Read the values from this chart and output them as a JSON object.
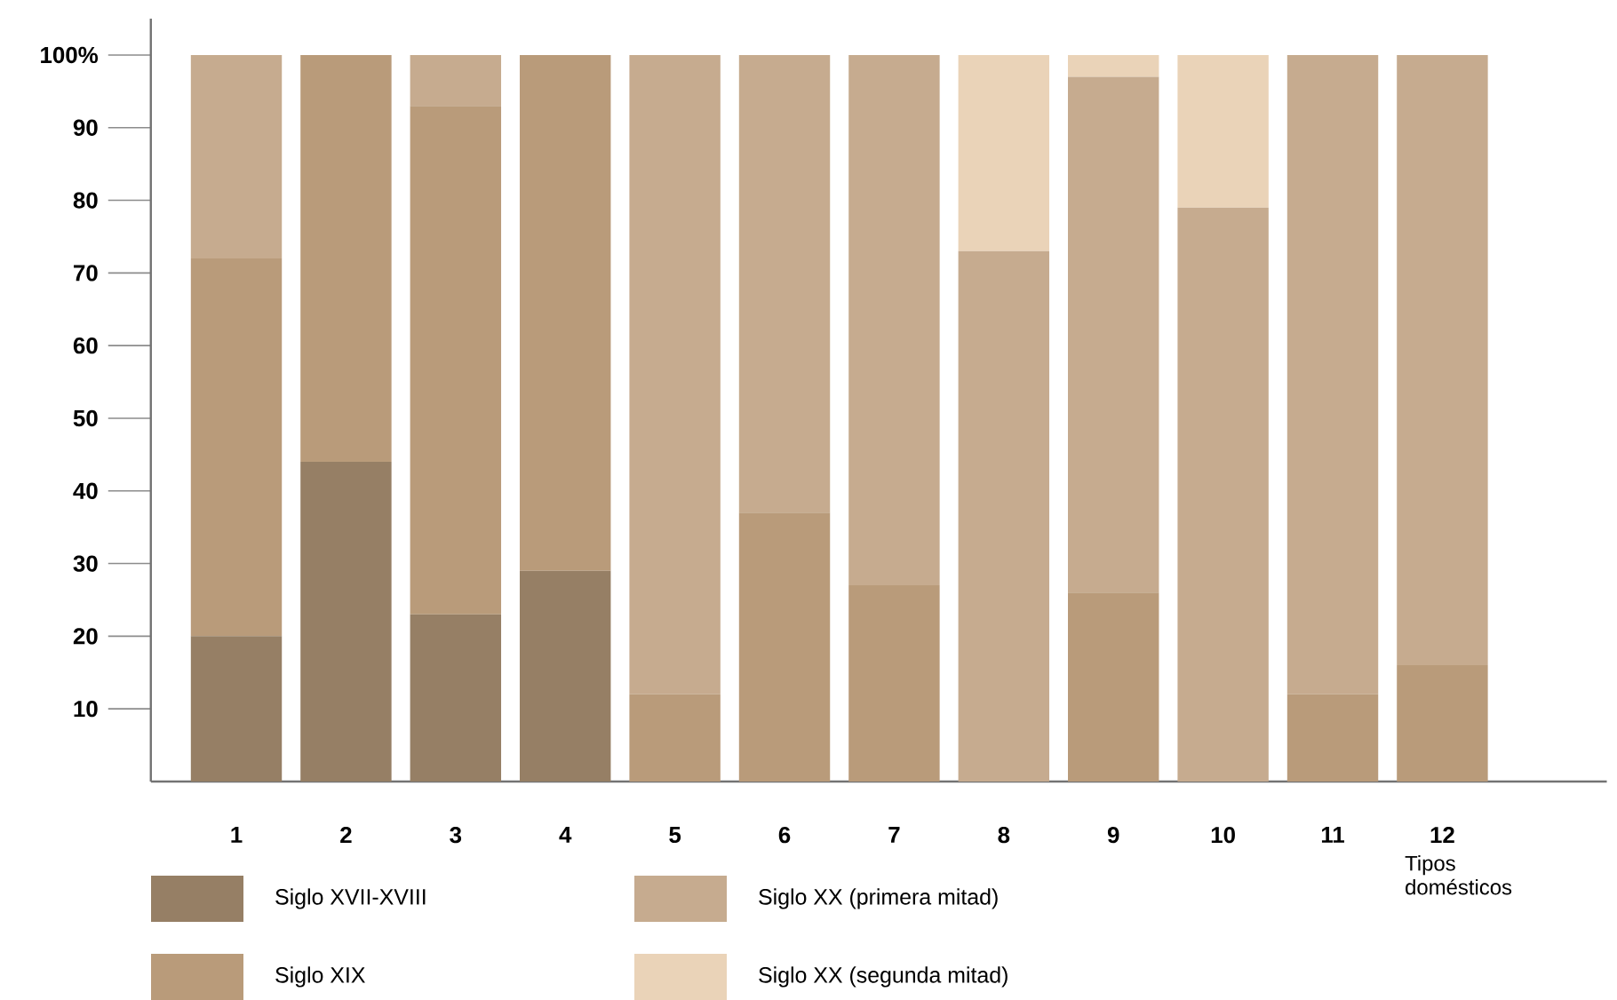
{
  "chart_data": {
    "type": "bar",
    "stacked": true,
    "xlabel": "Tipos domésticos",
    "categories": [
      "1",
      "2",
      "3",
      "4",
      "5",
      "6",
      "7",
      "8",
      "9",
      "10",
      "11",
      "12"
    ],
    "series": [
      {
        "name": "Siglo XVII-XVIII",
        "color": "#967f65",
        "values": [
          20,
          44,
          23,
          29,
          0,
          0,
          0,
          0,
          0,
          0,
          0,
          0
        ]
      },
      {
        "name": "Siglo XIX",
        "color": "#b99b7a",
        "values": [
          52,
          56,
          70,
          71,
          12,
          37,
          27,
          0,
          26,
          0,
          12,
          16
        ]
      },
      {
        "name": "Siglo XX (primera mitad)",
        "color": "#c6ab8f",
        "values": [
          28,
          0,
          7,
          0,
          88,
          63,
          73,
          73,
          71,
          79,
          88,
          84
        ]
      },
      {
        "name": "Siglo XX (segunda mitad)",
        "color": "#ead3b8",
        "values": [
          0,
          0,
          0,
          0,
          0,
          0,
          0,
          27,
          3,
          21,
          0,
          0
        ]
      }
    ],
    "ylim": [
      0,
      105
    ],
    "yticks": [
      10,
      20,
      30,
      40,
      50,
      60,
      70,
      80,
      90,
      {
        "value": 100,
        "label": "100%"
      }
    ],
    "legend": "bottom"
  }
}
